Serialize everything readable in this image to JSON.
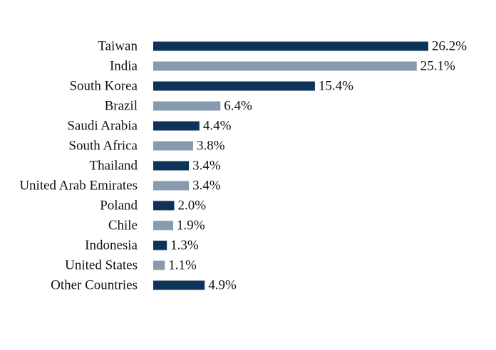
{
  "chart_data": {
    "type": "bar",
    "orientation": "horizontal",
    "categories": [
      "Taiwan",
      "India",
      "South Korea",
      "Brazil",
      "Saudi Arabia",
      "South Africa",
      "Thailand",
      "United Arab Emirates",
      "Poland",
      "Chile",
      "Indonesia",
      "United States",
      "Other Countries"
    ],
    "values": [
      26.2,
      25.1,
      15.4,
      6.4,
      4.4,
      3.8,
      3.4,
      3.4,
      2.0,
      1.9,
      1.3,
      1.1,
      4.9
    ],
    "value_labels": [
      "26.2%",
      "25.1%",
      "15.4%",
      "6.4%",
      "4.4%",
      "3.8%",
      "3.4%",
      "3.4%",
      "2.0%",
      "1.9%",
      "1.3%",
      "1.1%",
      "4.9%"
    ],
    "unit": "%",
    "title": "",
    "xlabel": "",
    "ylabel": "",
    "xlim": [
      0,
      26.2
    ],
    "grid": false,
    "legend": "none",
    "colors": [
      "#0d3358",
      "#869bb0"
    ]
  }
}
